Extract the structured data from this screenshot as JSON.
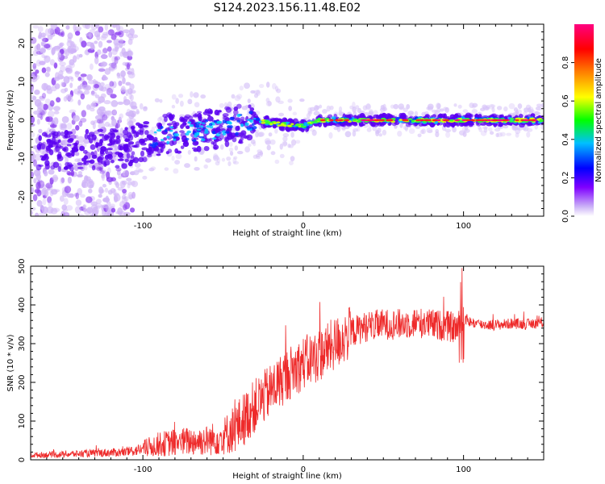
{
  "title": "S124.2023.156.11.48.E02",
  "colors": {
    "snr_line": "#ee2a2a",
    "spectrogram_low": "#c9a8f5",
    "spectrogram_mid": "#5a00f0"
  },
  "chart_data": [
    {
      "type": "heatmap",
      "xlabel": "Height of straight line (km)",
      "ylabel": "Frequency (Hz)",
      "xlim": [
        -170,
        150
      ],
      "ylim": [
        -25,
        25
      ],
      "xticks": [
        -100,
        0,
        100
      ],
      "yticks": [
        -20,
        -10,
        0,
        10,
        20
      ],
      "grid": false,
      "colorbar": {
        "label": "Normalized spectral amplitude",
        "range": [
          0,
          1
        ],
        "ticks": [
          "0.0",
          "0.2",
          "0.4",
          "0.6",
          "0.8"
        ],
        "tick_values": [
          0,
          0.2,
          0.4,
          0.6,
          0.8
        ],
        "colormap": [
          "#ffffff",
          "#7f00ff",
          "#0000ff",
          "#00bfff",
          "#00ff00",
          "#ffff00",
          "#ff8000",
          "#ff0000",
          "#ff0080"
        ]
      },
      "ridge": [
        {
          "x": -170,
          "y": -8
        },
        {
          "x": -140,
          "y": -8
        },
        {
          "x": -110,
          "y": -7
        },
        {
          "x": -90,
          "y": -4
        },
        {
          "x": -70,
          "y": -3
        },
        {
          "x": -50,
          "y": -2
        },
        {
          "x": -30,
          "y": 0
        },
        {
          "x": -15,
          "y": -1
        },
        {
          "x": 0,
          "y": -1.5
        },
        {
          "x": 10,
          "y": 0
        },
        {
          "x": 150,
          "y": 0
        }
      ]
    },
    {
      "type": "line",
      "xlabel": "Height of straight line (km)",
      "ylabel": "SNR (10 * v/v)",
      "xlim": [
        -170,
        150
      ],
      "ylim": [
        0,
        500
      ],
      "xticks": [
        -100,
        0,
        100
      ],
      "yticks": [
        0,
        100,
        200,
        300,
        400,
        500
      ],
      "grid": false,
      "series": [
        {
          "x": [
            -170,
            -150,
            -130,
            -110,
            -100,
            -90,
            -80,
            -70,
            -60,
            -50,
            -40,
            -30,
            -20,
            -10,
            0,
            10,
            20,
            30,
            40,
            50,
            60,
            70,
            80,
            90,
            95,
            100,
            105,
            110,
            120,
            130,
            140,
            150
          ],
          "values": [
            12,
            14,
            17,
            20,
            28,
            40,
            45,
            48,
            50,
            60,
            90,
            140,
            180,
            220,
            250,
            270,
            300,
            330,
            345,
            350,
            350,
            355,
            350,
            345,
            340,
            360,
            355,
            350,
            348,
            352,
            350,
            355
          ]
        }
      ]
    }
  ]
}
